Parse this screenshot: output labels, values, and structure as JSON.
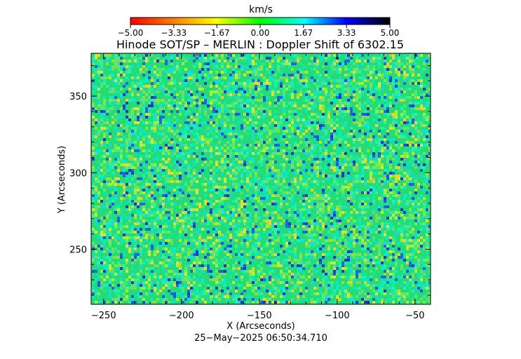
{
  "chart_data": {
    "type": "heatmap",
    "title": "Hinode SOT/SP – MERLIN : Doppler Shift of 6302.15",
    "xlabel": "X (Arcseconds)",
    "ylabel": "Y (Arcseconds)",
    "xlim": [
      -258,
      -40
    ],
    "ylim": [
      214,
      378
    ],
    "x_ticks": [
      -250,
      -200,
      -150,
      -100,
      -50
    ],
    "x_tick_labels": [
      "−250",
      "−200",
      "−150",
      "−100",
      "−50"
    ],
    "y_ticks": [
      250,
      300,
      350
    ],
    "y_tick_labels": [
      "250",
      "300",
      "350"
    ],
    "colorbar": {
      "label": "km/s",
      "range": [
        -5.0,
        5.0
      ],
      "ticks": [
        -5.0,
        -3.33,
        -1.67,
        0.0,
        1.67,
        3.33,
        5.0
      ],
      "tick_labels": [
        "−5.00",
        "−3.33",
        "−1.67",
        "0.00",
        "1.67",
        "3.33",
        "5.00"
      ],
      "colors": [
        "#ff0000",
        "#ff8000",
        "#ffff00",
        "#00ff00",
        "#00ffff",
        "#0000ff",
        "#000000"
      ]
    },
    "timestamp": "25−May−2025 06:50:34.710",
    "grid": false,
    "legend": "none"
  }
}
